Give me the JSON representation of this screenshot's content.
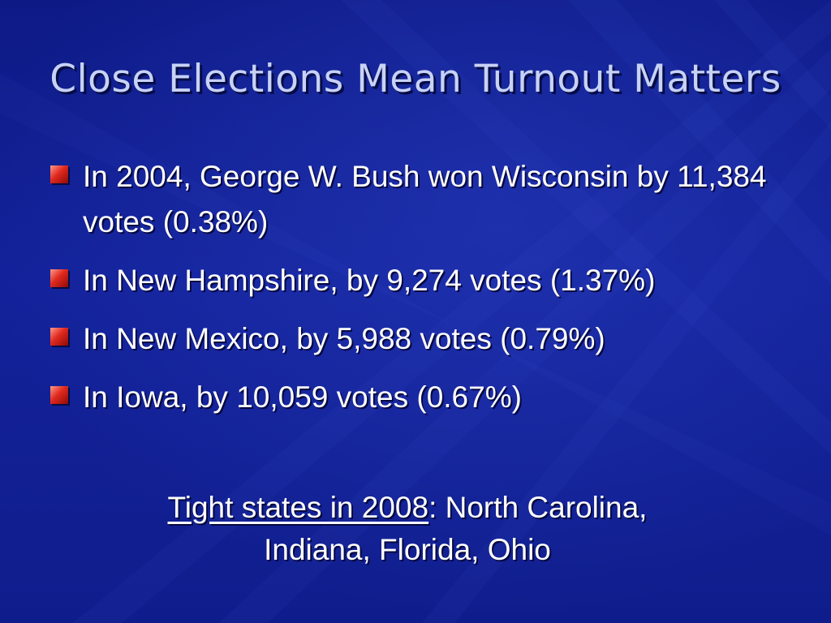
{
  "slide": {
    "title": "Close Elections Mean Turnout Matters",
    "bullets": [
      {
        "text": "In 2004, George W. Bush won Wisconsin by 11,384 votes (0.38%)"
      },
      {
        "text": "In New Hampshire, by 9,274 votes (1.37%)"
      },
      {
        "text": "In New Mexico, by 5,988 votes (0.79%)"
      },
      {
        "text": "In Iowa, by 10,059 votes (0.67%)"
      }
    ],
    "footer": {
      "underlined": "Tight states in 2008",
      "rest_line1": ":  North Carolina,",
      "line2": "Indiana, Florida, Ohio"
    }
  },
  "colors": {
    "background": "#12208f",
    "title_text": "#c7d2f6",
    "body_text": "#ffffff",
    "bullet_marker": "#e0291f"
  }
}
